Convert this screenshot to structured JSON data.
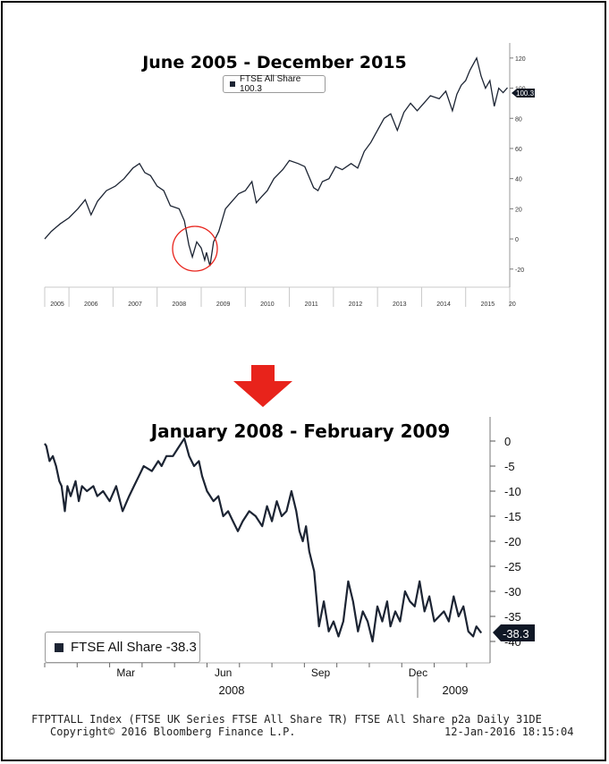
{
  "chart_data": [
    {
      "type": "line",
      "title": "June 2005 - December 2015",
      "legend": "FTSE All Share 100.3",
      "last_value_tag": "100.3",
      "xlabel": "",
      "ylabel": "",
      "x_tick_labels": [
        "2005",
        "2006",
        "2007",
        "2008",
        "2009",
        "2010",
        "2011",
        "2012",
        "2013",
        "2014",
        "2015",
        "20"
      ],
      "y_tick_labels": [
        "120",
        "100",
        "80",
        "60",
        "40",
        "20",
        "0",
        "-20"
      ],
      "ylim": [
        -32,
        130
      ],
      "series": [
        {
          "x": [
            2005.45,
            2005.6,
            2005.8,
            2006.0,
            2006.2,
            2006.37,
            2006.5,
            2006.65,
            2006.85,
            2007.05,
            2007.25,
            2007.45,
            2007.6,
            2007.72,
            2007.85,
            2008.0,
            2008.15,
            2008.3,
            2008.5,
            2008.62,
            2008.72,
            2008.8,
            2008.9,
            2009.0,
            2009.08,
            2009.12,
            2009.2,
            2009.28,
            2009.4,
            2009.55,
            2009.7,
            2009.85,
            2010.0,
            2010.15,
            2010.25,
            2010.37,
            2010.5,
            2010.65,
            2010.85,
            2011.0,
            2011.2,
            2011.35,
            2011.55,
            2011.65,
            2011.75,
            2011.9,
            2012.05,
            2012.2,
            2012.4,
            2012.55,
            2012.7,
            2012.85,
            2013.0,
            2013.15,
            2013.3,
            2013.45,
            2013.6,
            2013.75,
            2013.9,
            2014.05,
            2014.2,
            2014.4,
            2014.55,
            2014.7,
            2014.8,
            2014.9,
            2015.0,
            2015.1,
            2015.25,
            2015.35,
            2015.45,
            2015.55,
            2015.65,
            2015.75,
            2015.85,
            2015.95
          ],
          "values": [
            0,
            5,
            10,
            14,
            20,
            26,
            16,
            25,
            32,
            35,
            40,
            47,
            50,
            44,
            42,
            35,
            32,
            22,
            20,
            12,
            -4,
            -12,
            -2,
            -6,
            -14,
            -9,
            -18,
            -2,
            5,
            20,
            25,
            30,
            32,
            38,
            24,
            28,
            32,
            40,
            46,
            52,
            50,
            48,
            34,
            32,
            38,
            40,
            48,
            46,
            50,
            47,
            58,
            64,
            72,
            80,
            83,
            72,
            84,
            90,
            85,
            90,
            95,
            93,
            98,
            85,
            96,
            102,
            105,
            112,
            120,
            108,
            100,
            105,
            88,
            100,
            97,
            100.3
          ]
        }
      ],
      "annotation": "red circle around the 2008-2009 trough"
    },
    {
      "type": "line",
      "title": "January 2008 - February 2009",
      "legend": "FTSE All Share -38.3",
      "last_value_tag": "-38.3",
      "xlabel": "",
      "ylabel": "",
      "x_tick_labels": [
        "Mar",
        "Jun",
        "Sep",
        "Dec"
      ],
      "x_group_labels": [
        "2008",
        "2009"
      ],
      "y_tick_labels": [
        "0",
        "-5",
        "-10",
        "-15",
        "-20",
        "-25",
        "-30",
        "-35",
        "-40"
      ],
      "ylim": [
        -41.5,
        1.5
      ],
      "series": [
        {
          "x": [
            0,
            0.05,
            0.15,
            0.25,
            0.35,
            0.45,
            0.52,
            0.62,
            0.7,
            0.8,
            0.95,
            1.05,
            1.15,
            1.3,
            1.5,
            1.62,
            1.8,
            2.0,
            2.2,
            2.4,
            2.6,
            2.75,
            2.9,
            3.05,
            3.3,
            3.5,
            3.6,
            3.75,
            3.95,
            4.1,
            4.3,
            4.45,
            4.6,
            4.75,
            4.85,
            5.0,
            5.2,
            5.35,
            5.5,
            5.65,
            5.8,
            5.95,
            6.1,
            6.3,
            6.5,
            6.7,
            6.85,
            7.0,
            7.15,
            7.3,
            7.45,
            7.6,
            7.75,
            7.85,
            7.95,
            8.05,
            8.15,
            8.3,
            8.45,
            8.6,
            8.75,
            8.9,
            9.05,
            9.2,
            9.35,
            9.5,
            9.65,
            9.8,
            9.95,
            10.1,
            10.25,
            10.4,
            10.55,
            10.65,
            10.8,
            10.95,
            11.1,
            11.25,
            11.4,
            11.55,
            11.7,
            11.85,
            12.0,
            12.15,
            12.3,
            12.45,
            12.6,
            12.75,
            12.9,
            13.05,
            13.2,
            13.3,
            13.45
          ],
          "values": [
            -0.5,
            -1,
            -4,
            -3,
            -5,
            -8,
            -9,
            -14,
            -9,
            -11,
            -8,
            -12,
            -9,
            -10,
            -9,
            -11,
            -10,
            -12,
            -9,
            -14,
            -11,
            -9,
            -7,
            -5,
            -6,
            -4,
            -5,
            -3,
            -3,
            -1.5,
            0.5,
            -3,
            -5,
            -4,
            -7,
            -10,
            -12,
            -11,
            -15,
            -14,
            -16,
            -18,
            -16,
            -14,
            -15,
            -17,
            -13,
            -16,
            -12,
            -15,
            -14,
            -10,
            -14,
            -18,
            -20,
            -17,
            -22,
            -26,
            -37,
            -32,
            -38,
            -36,
            -39,
            -36,
            -28,
            -32,
            -38,
            -34,
            -36,
            -40,
            -33,
            -36,
            -32,
            -37,
            -34,
            -36,
            -30,
            -32,
            -33,
            -28,
            -34,
            -31,
            -36,
            -35,
            -34,
            -36,
            -31,
            -35,
            -33,
            -38,
            -39,
            -37,
            -38.3
          ]
        }
      ]
    }
  ],
  "footer": {
    "line1": "FTPTTALL Index (FTSE UK Series FTSE All Share TR) FTSE All Share p2a  Daily 31DE",
    "line2_left": "Copyright© 2016 Bloomberg Finance L.P.",
    "line2_right": "12-Jan-2016 18:15:04"
  },
  "colors": {
    "line": "#1c2433",
    "arrow": "#e8231b",
    "circle": "#e8231b",
    "tag_bg": "#101826"
  },
  "icons": [
    "down-arrow-icon"
  ]
}
